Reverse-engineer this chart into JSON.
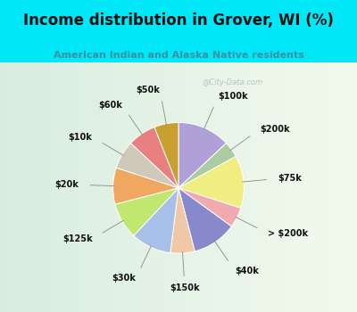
{
  "title": "Income distribution in Grover, WI (%)",
  "subtitle": "American Indian and Alaska Native residents",
  "title_color": "#111111",
  "subtitle_color": "#3a8fa8",
  "bg_cyan": "#00e8f8",
  "bg_chart": "#d8ede5",
  "watermark": "@City-Data.com",
  "labels": [
    "$100k",
    "$200k",
    "$75k",
    "> $200k",
    "$40k",
    "$150k",
    "$30k",
    "$125k",
    "$20k",
    "$10k",
    "$60k",
    "$50k"
  ],
  "values": [
    13,
    4,
    13,
    5,
    11,
    6,
    10,
    9,
    9,
    7,
    7,
    6
  ],
  "colors": [
    "#b0a0d8",
    "#aacca0",
    "#f0ee80",
    "#f0aab0",
    "#8888cc",
    "#f0c8a8",
    "#a8c0e8",
    "#c0e870",
    "#f0a860",
    "#d0c8b8",
    "#e88080",
    "#c8a030"
  ],
  "figsize": [
    4.0,
    3.5
  ],
  "dpi": 100,
  "title_fontsize": 12,
  "subtitle_fontsize": 8,
  "label_fontsize": 7
}
